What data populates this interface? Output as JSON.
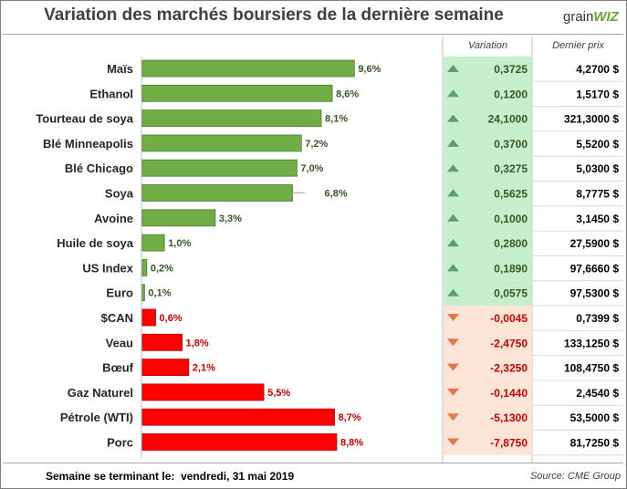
{
  "title": "Variation des marchés boursiers de la dernière semaine",
  "logo": {
    "prefix": "grain",
    "mark": "WIZ"
  },
  "columns": {
    "variation": "Variation",
    "last_price": "Dernier prix"
  },
  "footer": {
    "week_label": "Semaine se terminant le:",
    "week_date": "vendredi, 31 mai 2019",
    "source": "Source: CME Group"
  },
  "colors": {
    "up_bar": "#70ad47",
    "down_bar": "#ff0000",
    "up_cell": "#c6efce",
    "down_cell": "#fce4d6",
    "up_arrow": "#5e9c7a",
    "down_arrow": "#e07b48",
    "up_text": "#375623",
    "down_text": "#c00000"
  },
  "chart_data": {
    "type": "bar",
    "orientation": "horizontal",
    "title": "Variation des marchés boursiers de la dernière semaine",
    "categories": [
      "Maïs",
      "Ethanol",
      "Tourteau de soya",
      "Blé Minneapolis",
      "Blé Chicago",
      "Soya",
      "Avoine",
      "Huile de soya",
      "US Index",
      "Euro",
      "$CAN",
      "Veau",
      "Bœuf",
      "Gaz Naturel",
      "Pétrole (WTI)",
      "Porc"
    ],
    "values": [
      9.6,
      8.6,
      8.1,
      7.2,
      7.0,
      6.8,
      3.3,
      1.0,
      0.2,
      0.1,
      0.6,
      1.8,
      2.1,
      5.5,
      8.7,
      8.8
    ],
    "data_labels": [
      "9,6%",
      "8,6%",
      "8,1%",
      "7,2%",
      "7,0%",
      "6,8%",
      "3,3%",
      "1,0%",
      "0,2%",
      "0,1%",
      "0,6%",
      "1,8%",
      "2,1%",
      "5,5%",
      "8,7%",
      "8,8%"
    ],
    "direction": [
      "up",
      "up",
      "up",
      "up",
      "up",
      "up",
      "up",
      "up",
      "up",
      "up",
      "down",
      "down",
      "down",
      "down",
      "down",
      "down"
    ],
    "xlim": [
      0,
      10
    ],
    "grid": false,
    "legend": "none"
  },
  "table": {
    "variation": [
      "0,3725",
      "0,1200",
      "24,1000",
      "0,3700",
      "0,3275",
      "0,5625",
      "0,1000",
      "0,2800",
      "0,1890",
      "0,0575",
      "-0,0045",
      "-2,4750",
      "-2,3250",
      "-0,1440",
      "-5,1300",
      "-7,8750"
    ],
    "last_price": [
      "4,2700 $",
      "1,5170 $",
      "321,3000 $",
      "5,5200 $",
      "5,0300 $",
      "8,7775 $",
      "3,1450 $",
      "27,5900 $",
      "97,6660 $",
      "97,5300 $",
      "0,7399 $",
      "133,1250 $",
      "108,4750 $",
      "2,4540 $",
      "53,5000 $",
      "81,7250 $"
    ]
  }
}
